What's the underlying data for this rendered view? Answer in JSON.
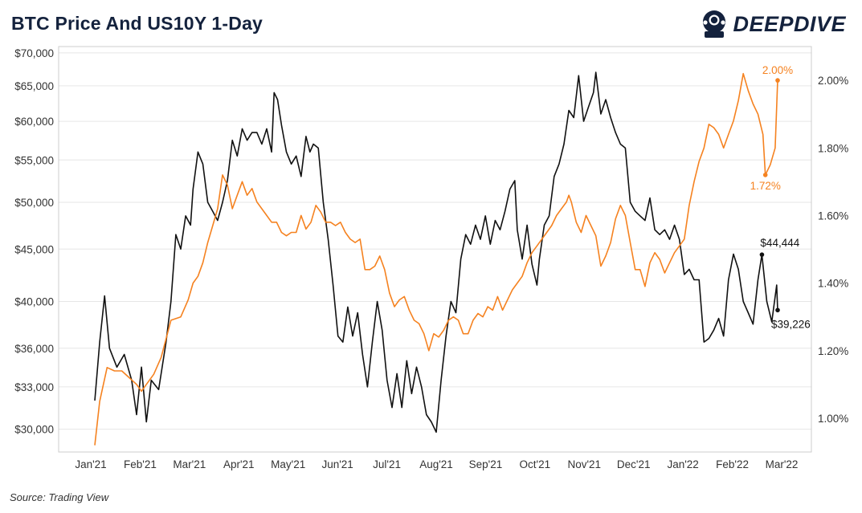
{
  "header": {
    "title": "BTC Price And US10Y 1-Day",
    "brand": "DEEPDIVE"
  },
  "footer": {
    "source": "Source: Trading View"
  },
  "colors": {
    "btc": "#111111",
    "us10y": "#f58220",
    "grid": "#e6e6e6",
    "frame": "#cccccc"
  },
  "chart_data": {
    "type": "line",
    "title": "BTC Price And US10Y 1-Day",
    "x_labels": [
      "Jan'21",
      "Feb'21",
      "Mar'21",
      "Apr'21",
      "May'21",
      "Jun'21",
      "Jul'21",
      "Aug'21",
      "Sep'21",
      "Oct'21",
      "Nov'21",
      "Dec'21",
      "Jan'22",
      "Feb'22",
      "Mar'22"
    ],
    "y_left": {
      "scale": "log",
      "range": [
        28500,
        71000
      ],
      "ticks": [
        30000,
        33000,
        36000,
        40000,
        45000,
        50000,
        55000,
        60000,
        65000,
        70000
      ],
      "tick_labels": [
        "$30,000",
        "$33,000",
        "$36,000",
        "$40,000",
        "$45,000",
        "$50,000",
        "$55,000",
        "$60,000",
        "$65,000",
        "$70,000"
      ]
    },
    "y_right": {
      "range": [
        0.9,
        2.1
      ],
      "ticks": [
        1.0,
        1.2,
        1.4,
        1.6,
        1.8,
        2.0
      ],
      "tick_labels": [
        "1.00%",
        "1.20%",
        "1.40%",
        "1.60%",
        "1.80%",
        "2.00%"
      ]
    },
    "series": [
      {
        "name": "BTC Price",
        "axis": "left",
        "points": [
          [
            0.0,
            32000
          ],
          [
            0.1,
            36500
          ],
          [
            0.2,
            40500
          ],
          [
            0.3,
            36000
          ],
          [
            0.45,
            34500
          ],
          [
            0.6,
            35500
          ],
          [
            0.75,
            33500
          ],
          [
            0.85,
            31000
          ],
          [
            0.95,
            34500
          ],
          [
            1.05,
            30500
          ],
          [
            1.15,
            33500
          ],
          [
            1.3,
            32800
          ],
          [
            1.45,
            36500
          ],
          [
            1.55,
            40000
          ],
          [
            1.65,
            46500
          ],
          [
            1.75,
            45000
          ],
          [
            1.85,
            48500
          ],
          [
            1.95,
            47500
          ],
          [
            2.0,
            51500
          ],
          [
            2.1,
            56000
          ],
          [
            2.2,
            54500
          ],
          [
            2.3,
            50000
          ],
          [
            2.4,
            49000
          ],
          [
            2.5,
            48000
          ],
          [
            2.6,
            50000
          ],
          [
            2.7,
            52500
          ],
          [
            2.8,
            57500
          ],
          [
            2.9,
            55500
          ],
          [
            3.0,
            59000
          ],
          [
            3.1,
            57500
          ],
          [
            3.2,
            58500
          ],
          [
            3.3,
            58500
          ],
          [
            3.4,
            57000
          ],
          [
            3.5,
            59000
          ],
          [
            3.6,
            56000
          ],
          [
            3.65,
            64000
          ],
          [
            3.72,
            63000
          ],
          [
            3.8,
            59500
          ],
          [
            3.9,
            56000
          ],
          [
            4.0,
            54500
          ],
          [
            4.1,
            55500
          ],
          [
            4.2,
            53000
          ],
          [
            4.3,
            58000
          ],
          [
            4.38,
            56000
          ],
          [
            4.45,
            57000
          ],
          [
            4.55,
            56500
          ],
          [
            4.65,
            50000
          ],
          [
            4.75,
            46000
          ],
          [
            4.85,
            41500
          ],
          [
            4.95,
            37000
          ],
          [
            5.05,
            36500
          ],
          [
            5.15,
            39500
          ],
          [
            5.25,
            37000
          ],
          [
            5.35,
            39000
          ],
          [
            5.45,
            35500
          ],
          [
            5.55,
            33000
          ],
          [
            5.65,
            36500
          ],
          [
            5.75,
            40000
          ],
          [
            5.85,
            37500
          ],
          [
            5.95,
            33500
          ],
          [
            6.05,
            31500
          ],
          [
            6.15,
            34000
          ],
          [
            6.25,
            31500
          ],
          [
            6.35,
            35000
          ],
          [
            6.45,
            32500
          ],
          [
            6.55,
            34500
          ],
          [
            6.65,
            33000
          ],
          [
            6.75,
            31000
          ],
          [
            6.85,
            30500
          ],
          [
            6.95,
            29800
          ],
          [
            7.05,
            33500
          ],
          [
            7.15,
            37000
          ],
          [
            7.25,
            40000
          ],
          [
            7.35,
            39000
          ],
          [
            7.45,
            44000
          ],
          [
            7.55,
            46500
          ],
          [
            7.65,
            45500
          ],
          [
            7.75,
            47500
          ],
          [
            7.85,
            46000
          ],
          [
            7.95,
            48500
          ],
          [
            8.05,
            45500
          ],
          [
            8.15,
            48000
          ],
          [
            8.25,
            47000
          ],
          [
            8.35,
            49000
          ],
          [
            8.45,
            51500
          ],
          [
            8.55,
            52500
          ],
          [
            8.6,
            47000
          ],
          [
            8.7,
            44000
          ],
          [
            8.8,
            47500
          ],
          [
            8.9,
            43500
          ],
          [
            9.0,
            41500
          ],
          [
            9.05,
            44000
          ],
          [
            9.15,
            47500
          ],
          [
            9.25,
            48500
          ],
          [
            9.35,
            53000
          ],
          [
            9.45,
            54500
          ],
          [
            9.55,
            57000
          ],
          [
            9.65,
            61500
          ],
          [
            9.75,
            60500
          ],
          [
            9.85,
            66500
          ],
          [
            9.95,
            60000
          ],
          [
            10.05,
            62000
          ],
          [
            10.15,
            64000
          ],
          [
            10.2,
            67000
          ],
          [
            10.3,
            61000
          ],
          [
            10.4,
            63000
          ],
          [
            10.5,
            60500
          ],
          [
            10.6,
            58500
          ],
          [
            10.7,
            57000
          ],
          [
            10.8,
            56500
          ],
          [
            10.9,
            50000
          ],
          [
            11.0,
            49000
          ],
          [
            11.1,
            48500
          ],
          [
            11.2,
            48000
          ],
          [
            11.3,
            50500
          ],
          [
            11.4,
            47000
          ],
          [
            11.5,
            46500
          ],
          [
            11.6,
            47000
          ],
          [
            11.7,
            46000
          ],
          [
            11.8,
            47500
          ],
          [
            11.9,
            46000
          ],
          [
            12.0,
            42500
          ],
          [
            12.1,
            43000
          ],
          [
            12.2,
            42000
          ],
          [
            12.3,
            42000
          ],
          [
            12.4,
            36500
          ],
          [
            12.5,
            36800
          ],
          [
            12.6,
            37500
          ],
          [
            12.7,
            38500
          ],
          [
            12.8,
            37000
          ],
          [
            12.9,
            42000
          ],
          [
            13.0,
            44500
          ],
          [
            13.1,
            43000
          ],
          [
            13.2,
            40000
          ],
          [
            13.3,
            39000
          ],
          [
            13.4,
            38000
          ],
          [
            13.5,
            42000
          ],
          [
            13.58,
            44444
          ],
          [
            13.68,
            40000
          ],
          [
            13.78,
            38200
          ],
          [
            13.88,
            41500
          ],
          [
            13.9,
            39226
          ]
        ]
      },
      {
        "name": "US10Y",
        "axis": "right",
        "points": [
          [
            0.0,
            0.92
          ],
          [
            0.1,
            1.05
          ],
          [
            0.25,
            1.15
          ],
          [
            0.4,
            1.14
          ],
          [
            0.55,
            1.14
          ],
          [
            0.7,
            1.12
          ],
          [
            0.85,
            1.1
          ],
          [
            0.95,
            1.08
          ],
          [
            1.05,
            1.1
          ],
          [
            1.2,
            1.13
          ],
          [
            1.35,
            1.18
          ],
          [
            1.55,
            1.29
          ],
          [
            1.75,
            1.3
          ],
          [
            1.9,
            1.35
          ],
          [
            2.0,
            1.4
          ],
          [
            2.1,
            1.42
          ],
          [
            2.2,
            1.46
          ],
          [
            2.3,
            1.52
          ],
          [
            2.4,
            1.57
          ],
          [
            2.5,
            1.62
          ],
          [
            2.6,
            1.72
          ],
          [
            2.7,
            1.69
          ],
          [
            2.8,
            1.62
          ],
          [
            2.9,
            1.66
          ],
          [
            3.0,
            1.7
          ],
          [
            3.1,
            1.66
          ],
          [
            3.2,
            1.68
          ],
          [
            3.3,
            1.64
          ],
          [
            3.4,
            1.62
          ],
          [
            3.5,
            1.6
          ],
          [
            3.6,
            1.58
          ],
          [
            3.7,
            1.58
          ],
          [
            3.8,
            1.55
          ],
          [
            3.9,
            1.54
          ],
          [
            4.0,
            1.55
          ],
          [
            4.1,
            1.55
          ],
          [
            4.2,
            1.6
          ],
          [
            4.3,
            1.56
          ],
          [
            4.4,
            1.58
          ],
          [
            4.5,
            1.63
          ],
          [
            4.6,
            1.61
          ],
          [
            4.7,
            1.58
          ],
          [
            4.8,
            1.58
          ],
          [
            4.9,
            1.57
          ],
          [
            5.0,
            1.58
          ],
          [
            5.1,
            1.55
          ],
          [
            5.2,
            1.53
          ],
          [
            5.3,
            1.52
          ],
          [
            5.4,
            1.53
          ],
          [
            5.5,
            1.44
          ],
          [
            5.6,
            1.44
          ],
          [
            5.7,
            1.45
          ],
          [
            5.8,
            1.48
          ],
          [
            5.9,
            1.44
          ],
          [
            6.0,
            1.37
          ],
          [
            6.1,
            1.33
          ],
          [
            6.2,
            1.35
          ],
          [
            6.3,
            1.36
          ],
          [
            6.4,
            1.32
          ],
          [
            6.5,
            1.29
          ],
          [
            6.6,
            1.28
          ],
          [
            6.7,
            1.25
          ],
          [
            6.8,
            1.2
          ],
          [
            6.9,
            1.25
          ],
          [
            7.0,
            1.24
          ],
          [
            7.1,
            1.26
          ],
          [
            7.2,
            1.29
          ],
          [
            7.3,
            1.3
          ],
          [
            7.4,
            1.29
          ],
          [
            7.5,
            1.25
          ],
          [
            7.6,
            1.25
          ],
          [
            7.7,
            1.29
          ],
          [
            7.8,
            1.31
          ],
          [
            7.9,
            1.3
          ],
          [
            8.0,
            1.33
          ],
          [
            8.1,
            1.32
          ],
          [
            8.2,
            1.36
          ],
          [
            8.3,
            1.32
          ],
          [
            8.4,
            1.35
          ],
          [
            8.5,
            1.38
          ],
          [
            8.6,
            1.4
          ],
          [
            8.7,
            1.42
          ],
          [
            8.8,
            1.46
          ],
          [
            8.9,
            1.49
          ],
          [
            9.0,
            1.51
          ],
          [
            9.1,
            1.53
          ],
          [
            9.2,
            1.55
          ],
          [
            9.3,
            1.57
          ],
          [
            9.4,
            1.6
          ],
          [
            9.5,
            1.62
          ],
          [
            9.6,
            1.64
          ],
          [
            9.65,
            1.66
          ],
          [
            9.7,
            1.64
          ],
          [
            9.8,
            1.58
          ],
          [
            9.9,
            1.55
          ],
          [
            10.0,
            1.6
          ],
          [
            10.1,
            1.57
          ],
          [
            10.2,
            1.54
          ],
          [
            10.3,
            1.45
          ],
          [
            10.4,
            1.48
          ],
          [
            10.5,
            1.52
          ],
          [
            10.6,
            1.59
          ],
          [
            10.7,
            1.63
          ],
          [
            10.8,
            1.6
          ],
          [
            10.9,
            1.52
          ],
          [
            11.0,
            1.44
          ],
          [
            11.1,
            1.44
          ],
          [
            11.2,
            1.39
          ],
          [
            11.3,
            1.46
          ],
          [
            11.4,
            1.49
          ],
          [
            11.5,
            1.47
          ],
          [
            11.6,
            1.43
          ],
          [
            11.7,
            1.46
          ],
          [
            11.8,
            1.49
          ],
          [
            11.9,
            1.51
          ],
          [
            12.0,
            1.53
          ],
          [
            12.1,
            1.63
          ],
          [
            12.2,
            1.7
          ],
          [
            12.3,
            1.76
          ],
          [
            12.4,
            1.8
          ],
          [
            12.5,
            1.87
          ],
          [
            12.6,
            1.86
          ],
          [
            12.7,
            1.84
          ],
          [
            12.8,
            1.8
          ],
          [
            12.9,
            1.84
          ],
          [
            13.0,
            1.88
          ],
          [
            13.1,
            1.94
          ],
          [
            13.2,
            2.02
          ],
          [
            13.3,
            1.97
          ],
          [
            13.4,
            1.93
          ],
          [
            13.5,
            1.9
          ],
          [
            13.6,
            1.84
          ],
          [
            13.65,
            1.72
          ],
          [
            13.75,
            1.75
          ],
          [
            13.85,
            1.8
          ],
          [
            13.9,
            2.0
          ]
        ]
      }
    ],
    "annotations": [
      {
        "series": "US10Y",
        "x": 13.9,
        "y": 2.0,
        "label": "2.00%"
      },
      {
        "series": "US10Y",
        "x": 13.65,
        "y": 1.72,
        "label": "1.72%"
      },
      {
        "series": "BTC Price",
        "x": 13.58,
        "y": 44444,
        "label": "$44,444"
      },
      {
        "series": "BTC Price",
        "x": 13.9,
        "y": 39226,
        "label": "$39,226"
      }
    ]
  }
}
